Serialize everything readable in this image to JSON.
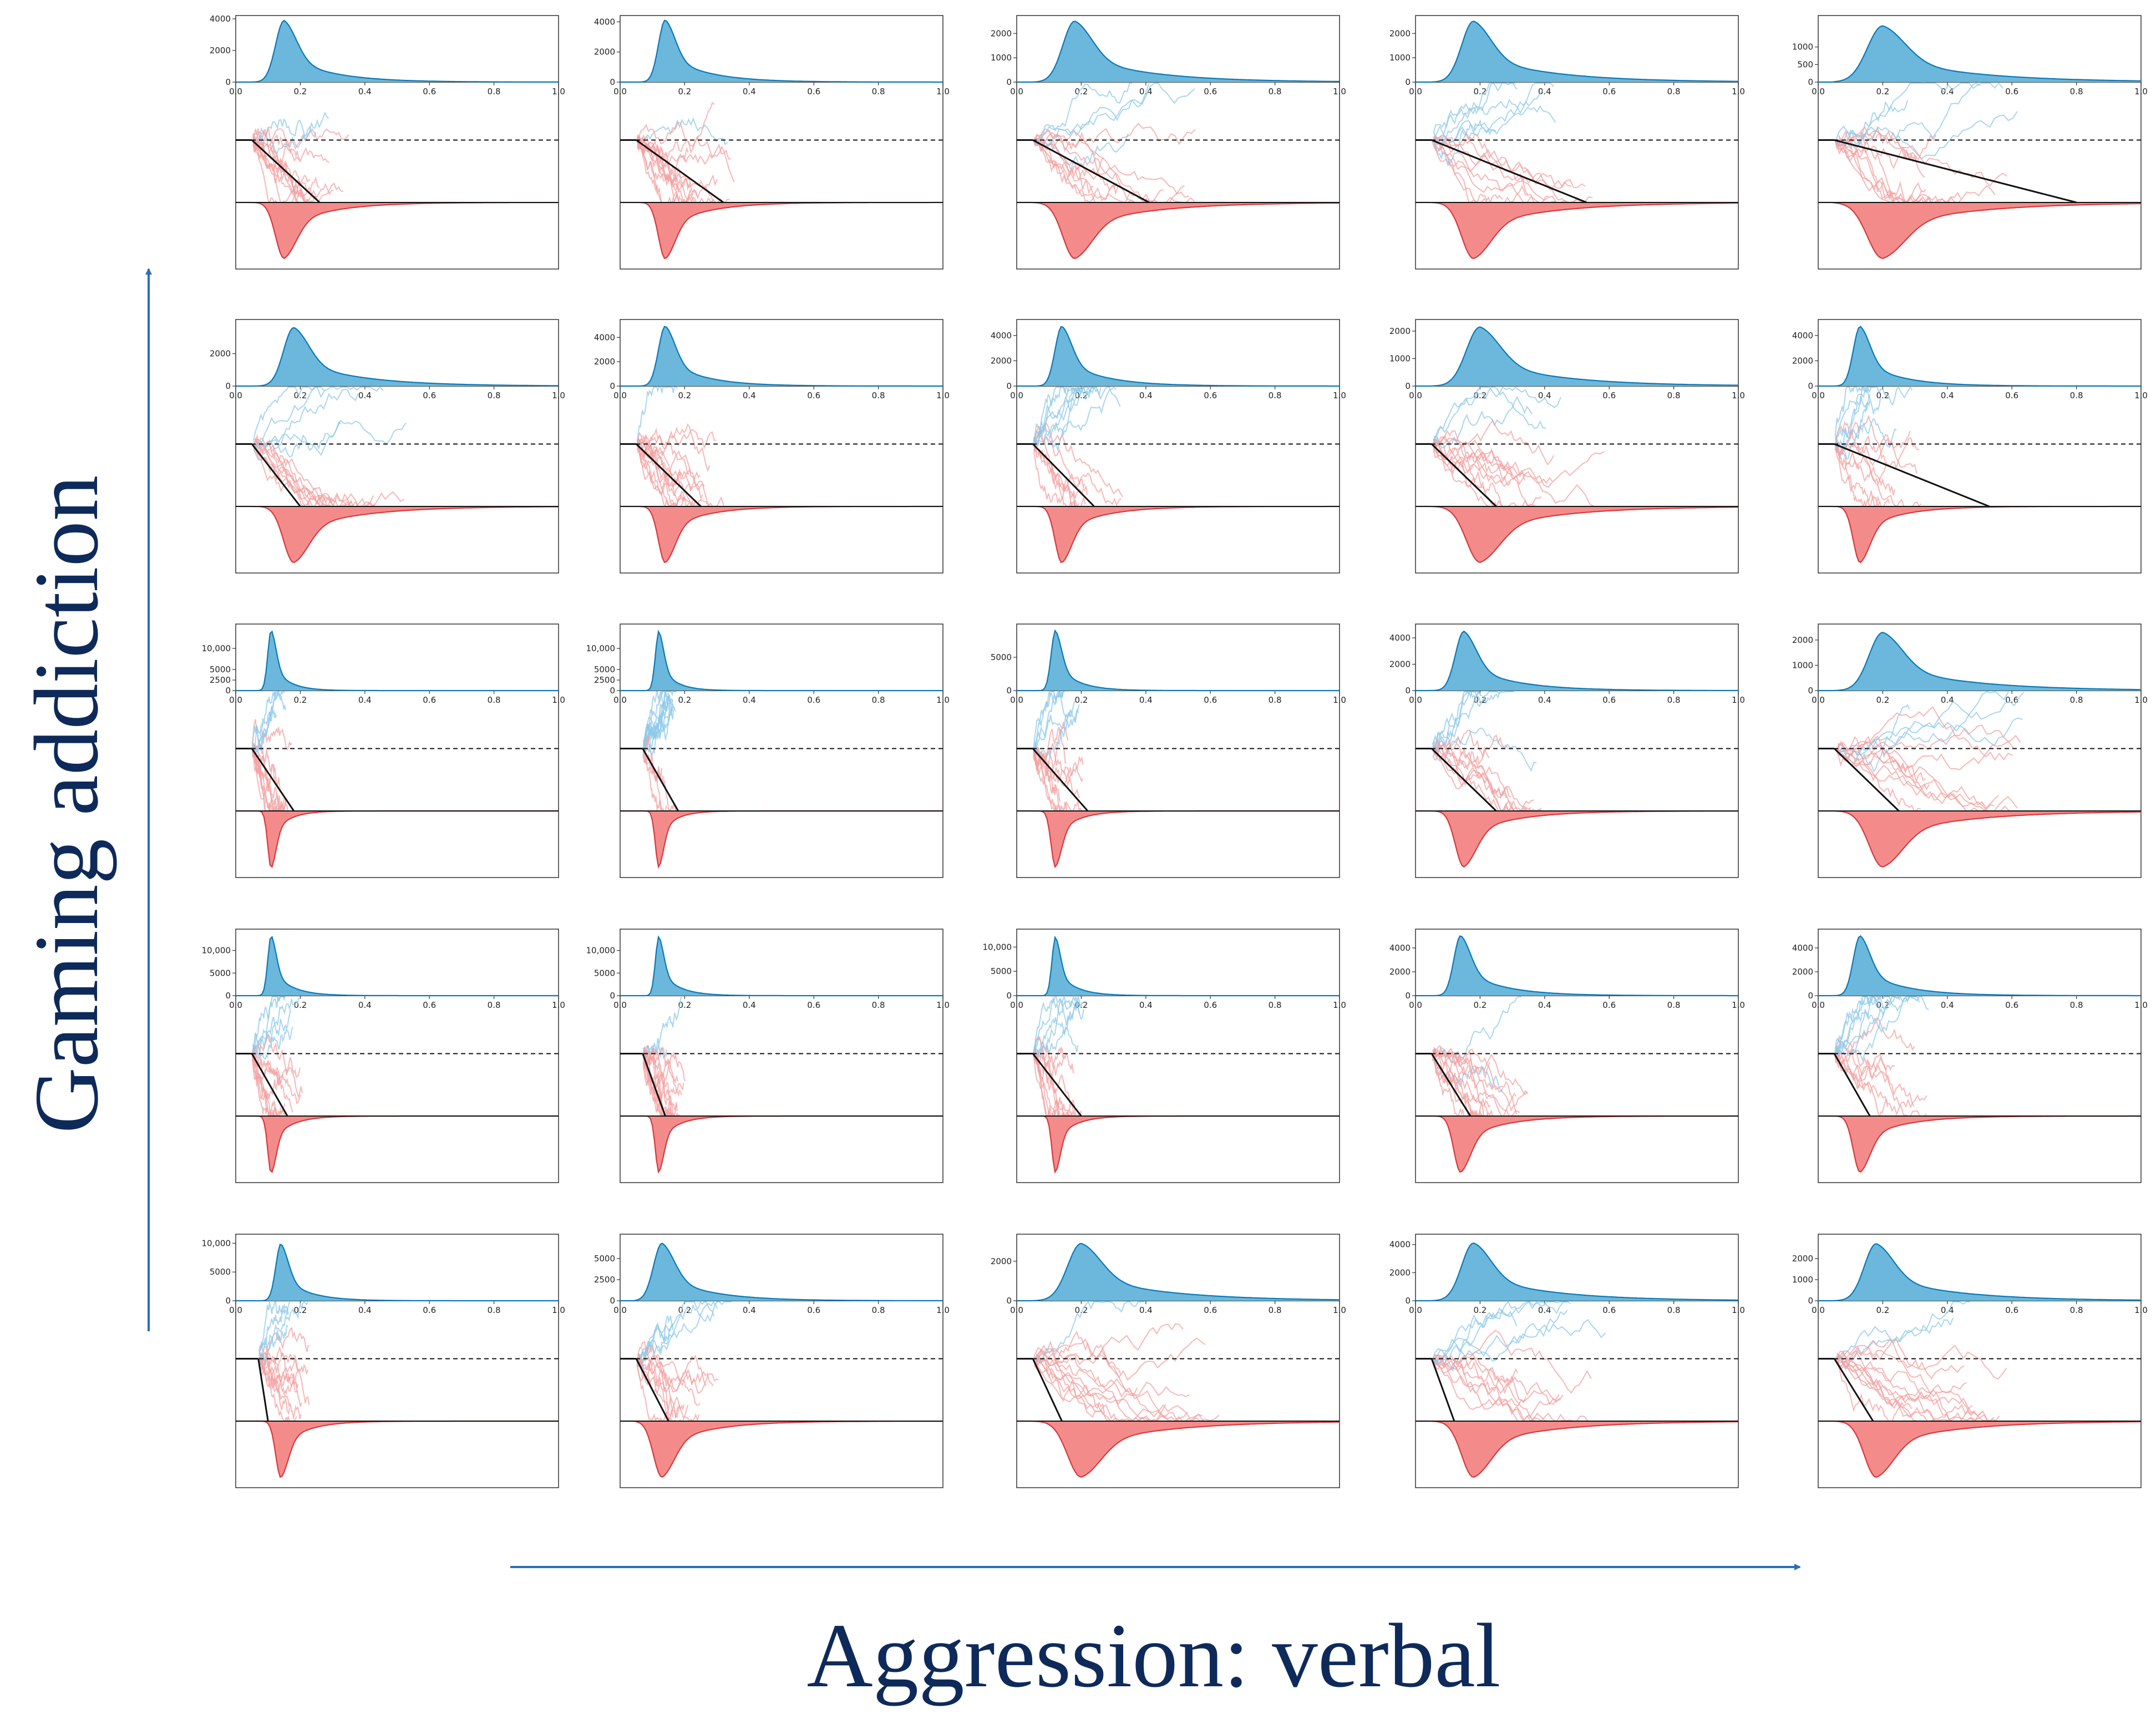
{
  "chart_data": {
    "type": "grid-of-density-plots",
    "rows": 5,
    "cols": 5,
    "xlabel": "Aggression: verbal",
    "ylabel": "Gaming addiction",
    "x_ticks": [
      "0.0",
      "0.2",
      "0.4",
      "0.6",
      "0.8",
      "1.0"
    ],
    "xlim": [
      0,
      1
    ],
    "colors": {
      "upper_fill": "#6bb8dc",
      "upper_line": "#0a79b6",
      "lower_fill": "#f48b8b",
      "lower_line": "#d9383c",
      "trace_blue": "#8ec8e8",
      "trace_red": "#f3a0a0",
      "axis_title": "#0e2a5a",
      "arrow": "#2f6db5"
    },
    "panels": [
      {
        "row": 1,
        "col": 1,
        "y_ticks": [
          "0",
          "2000",
          "4000"
        ],
        "ymax": 4000,
        "peak": 0.15,
        "upper_height": 3900,
        "spread": 0.05,
        "tail": 0.45,
        "lower_height": 0.9,
        "ndt": 0.05,
        "boundary_cross": 0.26
      },
      {
        "row": 1,
        "col": 2,
        "y_ticks": [
          "0",
          "2000",
          "4000"
        ],
        "ymax": 4200,
        "peak": 0.14,
        "upper_height": 4100,
        "spread": 0.04,
        "tail": 0.45,
        "lower_height": 0.9,
        "ndt": 0.05,
        "boundary_cross": 0.32
      },
      {
        "row": 1,
        "col": 3,
        "y_ticks": [
          "0",
          "1000",
          "2000"
        ],
        "ymax": 2600,
        "peak": 0.18,
        "upper_height": 2500,
        "spread": 0.07,
        "tail": 0.75,
        "lower_height": 0.9,
        "ndt": 0.05,
        "boundary_cross": 0.41
      },
      {
        "row": 1,
        "col": 4,
        "y_ticks": [
          "0",
          "1000",
          "2000"
        ],
        "ymax": 2600,
        "peak": 0.18,
        "upper_height": 2500,
        "spread": 0.07,
        "tail": 0.8,
        "lower_height": 0.9,
        "ndt": 0.05,
        "boundary_cross": 0.53
      },
      {
        "row": 1,
        "col": 5,
        "y_ticks": [
          "0",
          "500",
          "1000"
        ],
        "ymax": 1800,
        "peak": 0.2,
        "upper_height": 1600,
        "spread": 0.09,
        "tail": 0.85,
        "lower_height": 0.9,
        "ndt": 0.05,
        "boundary_cross": 0.8
      },
      {
        "row": 2,
        "col": 1,
        "y_ticks": [
          "0",
          "2000"
        ],
        "ymax": 3900,
        "peak": 0.18,
        "upper_height": 3600,
        "spread": 0.06,
        "tail": 0.7,
        "lower_height": 0.9,
        "ndt": 0.05,
        "boundary_cross": 0.2
      },
      {
        "row": 2,
        "col": 2,
        "y_ticks": [
          "0",
          "2000",
          "4000"
        ],
        "ymax": 5200,
        "peak": 0.14,
        "upper_height": 4900,
        "spread": 0.04,
        "tail": 0.4,
        "lower_height": 0.9,
        "ndt": 0.05,
        "boundary_cross": 0.25
      },
      {
        "row": 2,
        "col": 3,
        "y_ticks": [
          "0",
          "2000",
          "4000"
        ],
        "ymax": 5000,
        "peak": 0.14,
        "upper_height": 4700,
        "spread": 0.04,
        "tail": 0.45,
        "lower_height": 0.9,
        "ndt": 0.05,
        "boundary_cross": 0.24
      },
      {
        "row": 2,
        "col": 4,
        "y_ticks": [
          "0",
          "1000",
          "2000"
        ],
        "ymax": 2300,
        "peak": 0.2,
        "upper_height": 2150,
        "spread": 0.08,
        "tail": 0.75,
        "lower_height": 0.9,
        "ndt": 0.05,
        "boundary_cross": 0.25
      },
      {
        "row": 2,
        "col": 5,
        "y_ticks": [
          "0",
          "2000",
          "4000"
        ],
        "ymax": 5000,
        "peak": 0.13,
        "upper_height": 4700,
        "spread": 0.04,
        "tail": 0.4,
        "lower_height": 0.9,
        "ndt": 0.05,
        "boundary_cross": 0.53
      },
      {
        "row": 3,
        "col": 1,
        "y_ticks": [
          "0",
          "2500",
          "5000",
          "10,000"
        ],
        "ymax": 15000,
        "peak": 0.11,
        "upper_height": 14000,
        "spread": 0.02,
        "tail": 0.2,
        "lower_height": 0.9,
        "ndt": 0.05,
        "boundary_cross": 0.18
      },
      {
        "row": 3,
        "col": 2,
        "y_ticks": [
          "0",
          "2500",
          "5000",
          "10,000"
        ],
        "ymax": 15000,
        "peak": 0.12,
        "upper_height": 14000,
        "spread": 0.02,
        "tail": 0.2,
        "lower_height": 0.9,
        "ndt": 0.07,
        "boundary_cross": 0.18
      },
      {
        "row": 3,
        "col": 3,
        "y_ticks": [
          "0",
          "5000"
        ],
        "ymax": 9500,
        "peak": 0.12,
        "upper_height": 9000,
        "spread": 0.025,
        "tail": 0.25,
        "lower_height": 0.9,
        "ndt": 0.05,
        "boundary_cross": 0.22
      },
      {
        "row": 3,
        "col": 4,
        "y_ticks": [
          "0",
          "2000",
          "4000"
        ],
        "ymax": 4800,
        "peak": 0.15,
        "upper_height": 4500,
        "spread": 0.05,
        "tail": 0.5,
        "lower_height": 0.9,
        "ndt": 0.05,
        "boundary_cross": 0.25
      },
      {
        "row": 3,
        "col": 5,
        "y_ticks": [
          "0",
          "1000",
          "2000"
        ],
        "ymax": 2500,
        "peak": 0.2,
        "upper_height": 2300,
        "spread": 0.08,
        "tail": 0.85,
        "lower_height": 0.9,
        "ndt": 0.05,
        "boundary_cross": 0.25
      },
      {
        "row": 4,
        "col": 1,
        "y_ticks": [
          "0",
          "5000",
          "10,000"
        ],
        "ymax": 14000,
        "peak": 0.11,
        "upper_height": 13000,
        "spread": 0.02,
        "tail": 0.25,
        "lower_height": 0.9,
        "ndt": 0.05,
        "boundary_cross": 0.16
      },
      {
        "row": 4,
        "col": 2,
        "y_ticks": [
          "0",
          "5000",
          "10,000"
        ],
        "ymax": 14000,
        "peak": 0.12,
        "upper_height": 13000,
        "spread": 0.02,
        "tail": 0.25,
        "lower_height": 0.9,
        "ndt": 0.07,
        "boundary_cross": 0.14
      },
      {
        "row": 4,
        "col": 3,
        "y_ticks": [
          "0",
          "5000",
          "10,000"
        ],
        "ymax": 13000,
        "peak": 0.12,
        "upper_height": 12000,
        "spread": 0.02,
        "tail": 0.25,
        "lower_height": 0.9,
        "ndt": 0.05,
        "boundary_cross": 0.2
      },
      {
        "row": 4,
        "col": 4,
        "y_ticks": [
          "0",
          "2000",
          "4000"
        ],
        "ymax": 5300,
        "peak": 0.14,
        "upper_height": 5000,
        "spread": 0.04,
        "tail": 0.45,
        "lower_height": 0.9,
        "ndt": 0.05,
        "boundary_cross": 0.17
      },
      {
        "row": 4,
        "col": 5,
        "y_ticks": [
          "0",
          "2000",
          "4000"
        ],
        "ymax": 5300,
        "peak": 0.13,
        "upper_height": 5000,
        "spread": 0.04,
        "tail": 0.45,
        "lower_height": 0.9,
        "ndt": 0.05,
        "boundary_cross": 0.16
      },
      {
        "row": 5,
        "col": 1,
        "y_ticks": [
          "0",
          "5000",
          "10,000"
        ],
        "ymax": 11000,
        "peak": 0.14,
        "upper_height": 9800,
        "spread": 0.03,
        "tail": 0.3,
        "lower_height": 0.9,
        "ndt": 0.07,
        "boundary_cross": 0.1
      },
      {
        "row": 5,
        "col": 2,
        "y_ticks": [
          "0",
          "2500",
          "5000"
        ],
        "ymax": 7500,
        "peak": 0.13,
        "upper_height": 6800,
        "spread": 0.05,
        "tail": 0.45,
        "lower_height": 0.9,
        "ndt": 0.05,
        "boundary_cross": 0.15
      },
      {
        "row": 5,
        "col": 3,
        "y_ticks": [
          "0",
          "2000"
        ],
        "ymax": 3200,
        "peak": 0.2,
        "upper_height": 2900,
        "spread": 0.08,
        "tail": 0.85,
        "lower_height": 0.9,
        "ndt": 0.05,
        "boundary_cross": 0.14
      },
      {
        "row": 5,
        "col": 4,
        "y_ticks": [
          "0",
          "2000",
          "4000"
        ],
        "ymax": 4500,
        "peak": 0.18,
        "upper_height": 4100,
        "spread": 0.07,
        "tail": 0.8,
        "lower_height": 0.9,
        "ndt": 0.05,
        "boundary_cross": 0.12
      },
      {
        "row": 5,
        "col": 5,
        "y_ticks": [
          "0",
          "1000",
          "2000"
        ],
        "ymax": 3000,
        "peak": 0.18,
        "upper_height": 2700,
        "spread": 0.07,
        "tail": 0.8,
        "lower_height": 0.9,
        "ndt": 0.05,
        "boundary_cross": 0.17
      }
    ]
  }
}
